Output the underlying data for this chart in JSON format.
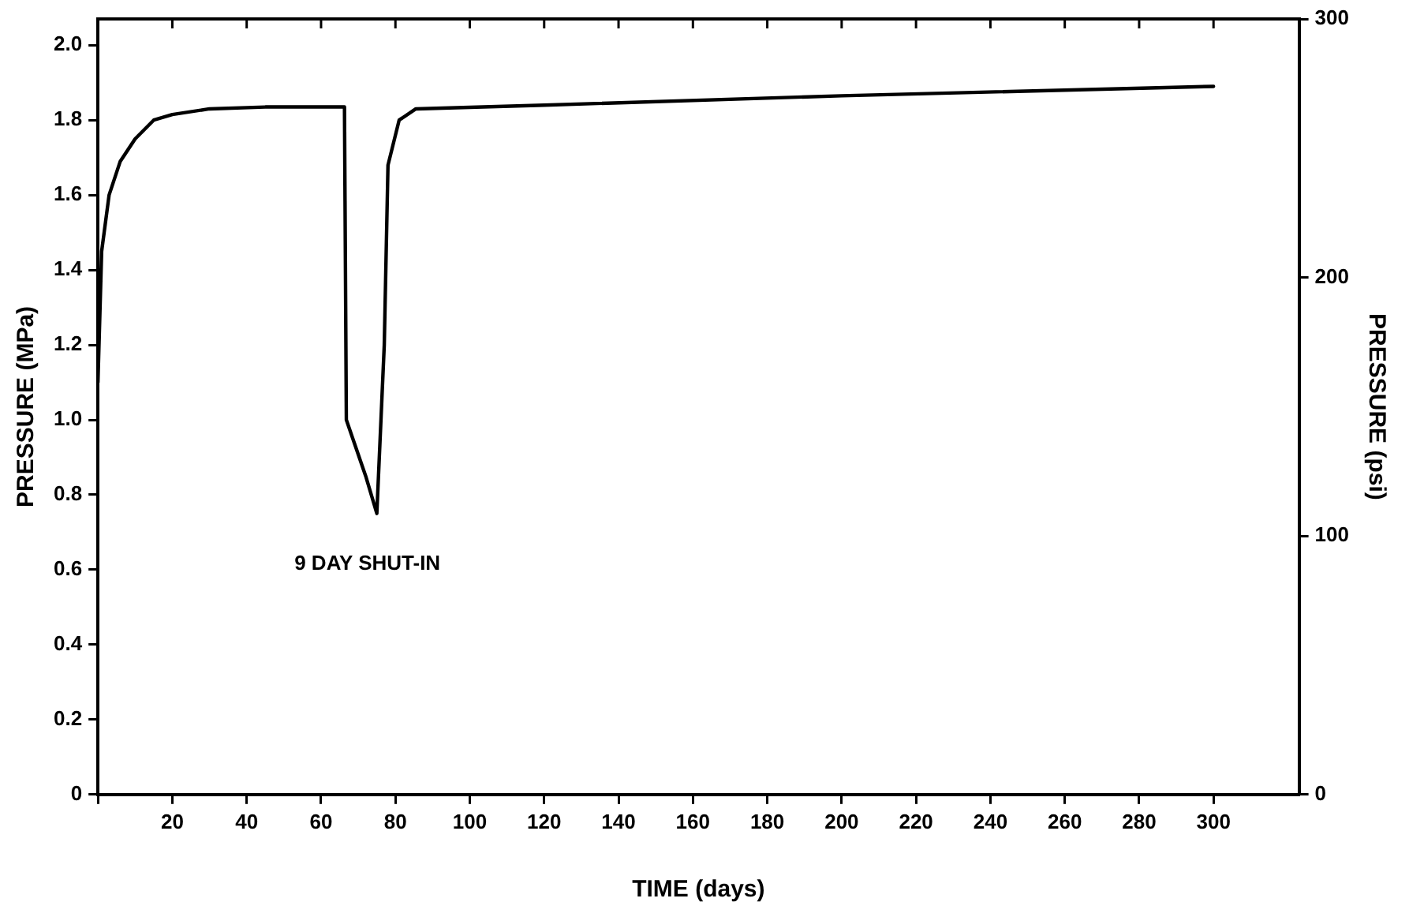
{
  "chart_data": {
    "type": "line",
    "xlabel": "TIME (days)",
    "ylabel": "PRESSURE (MPa)",
    "y2label": "PRESSURE (psi)",
    "xlim": [
      0,
      323
    ],
    "xticks": [
      {
        "value": 0,
        "label": null
      },
      20,
      40,
      60,
      80,
      100,
      120,
      140,
      160,
      180,
      200,
      220,
      240,
      260,
      280,
      300
    ],
    "ylim": [
      0,
      2.07
    ],
    "yticks": [
      0,
      0.2,
      0.4,
      0.6,
      0.8,
      {
        "value": 1,
        "label": "1.0"
      },
      1.2,
      1.4,
      1.6,
      1.8,
      {
        "value": 2,
        "label": "2.0"
      }
    ],
    "y2lim": [
      0,
      300
    ],
    "y2ticks": [
      0,
      100,
      200,
      300
    ],
    "grid": false,
    "legend": false,
    "marker": "none",
    "line_style": "solid",
    "series": [
      {
        "color": "#000000",
        "x": [
          0,
          1,
          3,
          6,
          10,
          15,
          20,
          30,
          45,
          66.3,
          66.8,
          72,
          75,
          77,
          78,
          81,
          85.5,
          120,
          200,
          300
        ],
        "values": [
          1.1,
          1.45,
          1.6,
          1.69,
          1.75,
          1.8,
          1.815,
          1.83,
          1.835,
          1.835,
          1.0,
          0.85,
          0.75,
          1.2,
          1.68,
          1.8,
          1.83,
          1.84,
          1.865,
          1.89
        ]
      }
    ],
    "annotations": [
      "9 DAY SHUT-IN"
    ]
  }
}
